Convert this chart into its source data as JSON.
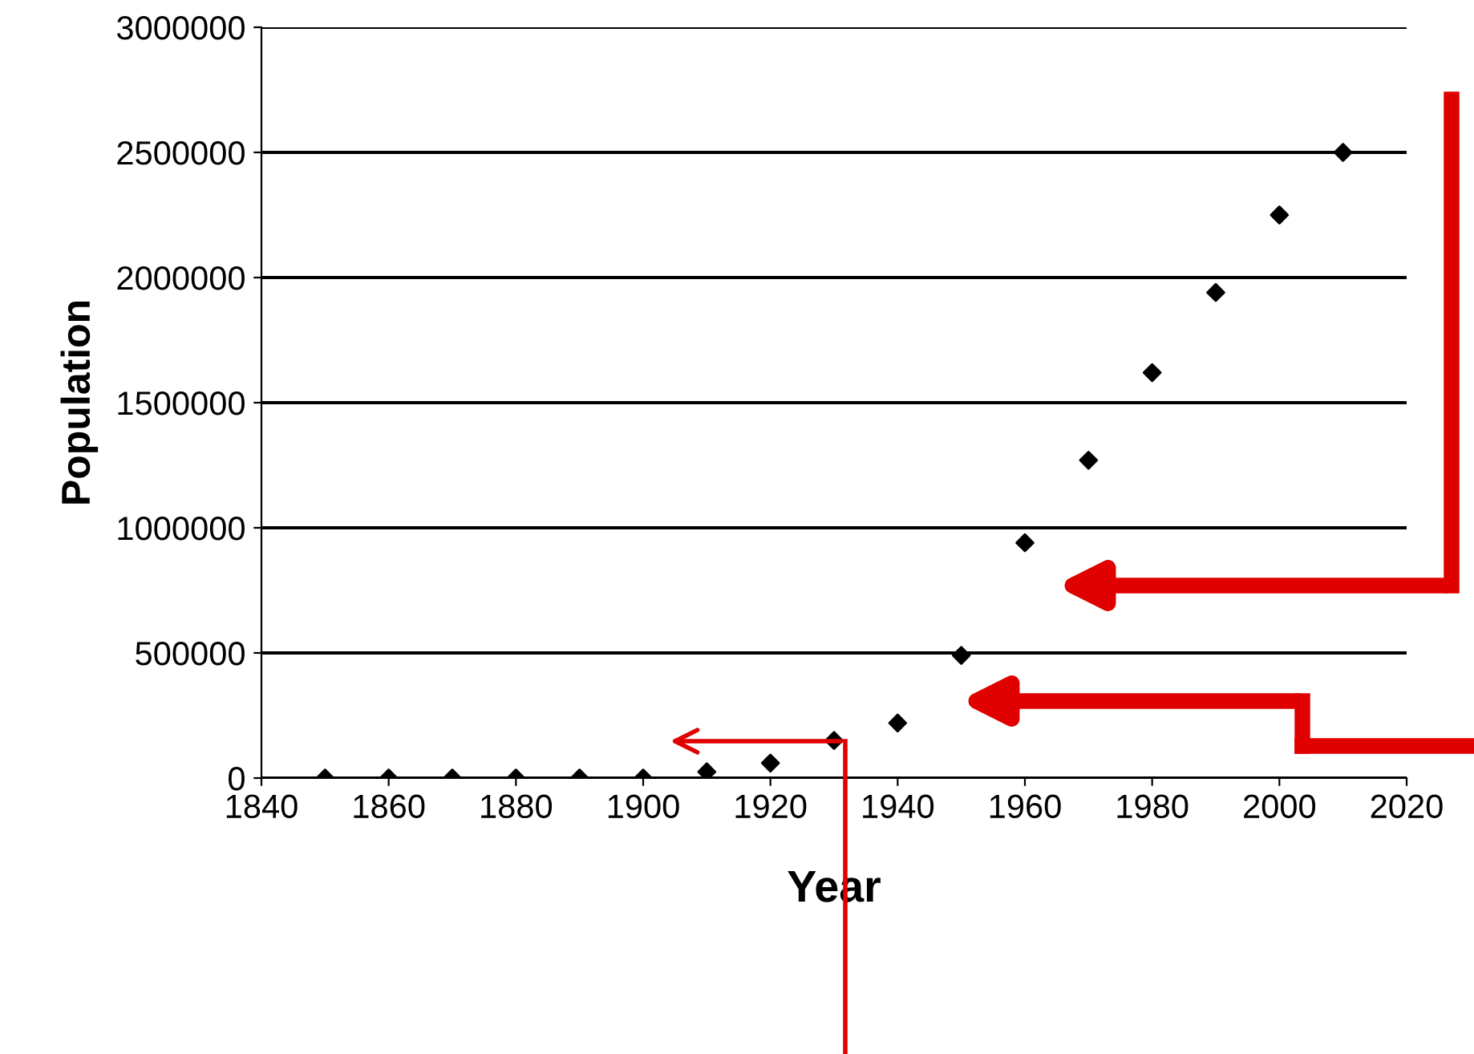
{
  "chart_data": {
    "type": "scatter",
    "xlabel": "Year",
    "ylabel": "Population",
    "x": [
      1850,
      1860,
      1870,
      1880,
      1890,
      1900,
      1910,
      1920,
      1930,
      1940,
      1950,
      1960,
      1970,
      1980,
      1990,
      2000,
      2010
    ],
    "series": [
      {
        "color": "#000000",
        "values": [
          0,
          0,
          0,
          0,
          0,
          0,
          25000,
          60000,
          150000,
          220000,
          490000,
          940000,
          1270000,
          1620000,
          1940000,
          2250000,
          2500000
        ]
      }
    ],
    "xlim": [
      1840,
      2020
    ],
    "xticks": [
      1840,
      1860,
      1880,
      1900,
      1920,
      1940,
      1960,
      1980,
      2000,
      2020
    ],
    "ylim": [
      0,
      3000000
    ],
    "yticks": [
      0,
      500000,
      1000000,
      1500000,
      2000000,
      2500000,
      3000000
    ],
    "grid": "y",
    "marker": "diamond"
  }
}
